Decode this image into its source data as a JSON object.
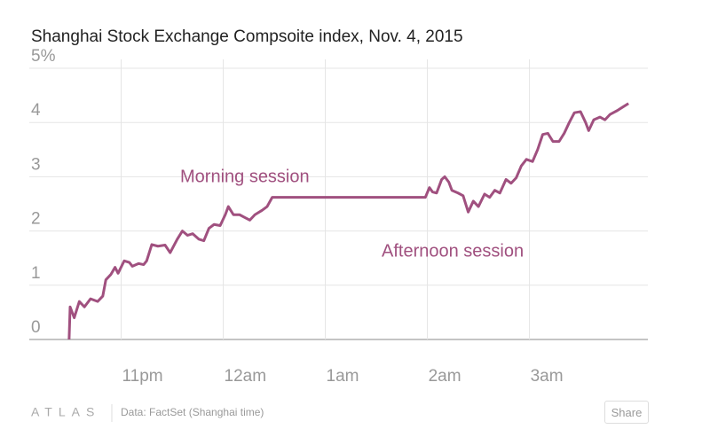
{
  "chart_data": {
    "type": "line",
    "title": "Shanghai Stock Exchange Compsoite index, Nov. 4, 2015",
    "source": "Data: FactSet (Shanghai time)",
    "annotations": [
      "Morning session",
      "Afternoon session"
    ],
    "grid": true,
    "xlim": [
      22.1,
      28.16
    ],
    "xticks": [
      {
        "value": 23,
        "label": "11pm"
      },
      {
        "value": 24,
        "label": "12am"
      },
      {
        "value": 25,
        "label": "1am"
      },
      {
        "value": 26,
        "label": "2am"
      },
      {
        "value": 27,
        "label": "3am"
      }
    ],
    "ylim": [
      0,
      5
    ],
    "yticks": [
      0,
      1,
      2,
      3,
      4,
      {
        "value": 5,
        "label": "5%"
      }
    ],
    "series": [
      {
        "color": "#a0507f",
        "x": [
          22.49,
          22.5,
          22.54,
          22.59,
          22.64,
          22.7,
          22.77,
          22.82,
          22.85,
          22.9,
          22.94,
          22.97,
          23.03,
          23.08,
          23.11,
          23.17,
          23.22,
          23.25,
          23.3,
          23.36,
          23.43,
          23.48,
          23.55,
          23.6,
          23.65,
          23.7,
          23.76,
          23.81,
          23.86,
          23.91,
          23.97,
          24.02,
          24.05,
          24.1,
          24.16,
          24.21,
          24.26,
          24.31,
          24.38,
          24.43,
          24.48,
          25.98,
          26.02,
          26.05,
          26.09,
          26.14,
          26.17,
          26.21,
          26.24,
          26.3,
          26.35,
          26.4,
          26.45,
          26.5,
          26.56,
          26.61,
          26.66,
          26.71,
          26.77,
          26.82,
          26.87,
          26.92,
          26.97,
          27.03,
          27.08,
          27.13,
          27.18,
          27.23,
          27.29,
          27.34,
          27.39,
          27.44,
          27.5,
          27.55,
          27.58,
          27.63,
          27.69,
          27.74,
          27.79,
          27.86,
          27.91,
          27.97
        ],
        "values": [
          0,
          0.6,
          0.4,
          0.7,
          0.6,
          0.75,
          0.7,
          0.8,
          1.1,
          1.2,
          1.33,
          1.22,
          1.45,
          1.42,
          1.35,
          1.4,
          1.38,
          1.45,
          1.75,
          1.72,
          1.74,
          1.6,
          1.85,
          2.0,
          1.92,
          1.95,
          1.85,
          1.82,
          2.05,
          2.12,
          2.1,
          2.3,
          2.45,
          2.3,
          2.3,
          2.25,
          2.2,
          2.3,
          2.38,
          2.45,
          2.62,
          2.62,
          2.8,
          2.72,
          2.7,
          2.95,
          3.0,
          2.9,
          2.75,
          2.7,
          2.65,
          2.35,
          2.55,
          2.45,
          2.68,
          2.62,
          2.75,
          2.7,
          2.95,
          2.88,
          2.98,
          3.2,
          3.32,
          3.28,
          3.5,
          3.78,
          3.8,
          3.65,
          3.65,
          3.8,
          4.0,
          4.18,
          4.2,
          4.0,
          3.85,
          4.05,
          4.1,
          4.05,
          4.15,
          4.22,
          4.28,
          4.35
        ]
      }
    ]
  },
  "logo": "ATLAS",
  "share": "Share"
}
